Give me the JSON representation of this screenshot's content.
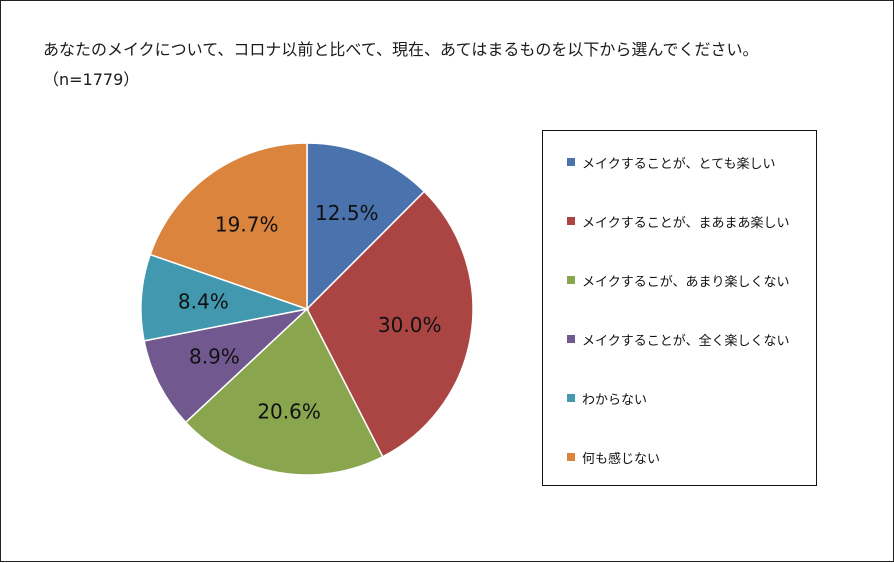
{
  "title": "あなたのメイクについて、コロナ以前と比べて、現在、あてはまるものを以下から選んでください。（n=1779）",
  "chart_data": {
    "type": "pie",
    "categories": [
      "メイクすることが、とても楽しい",
      "メイクすることが、まあまあ楽しい",
      "メイクするこが、あまり楽しくない",
      "メイクすることが、全く楽しくない",
      "わからない",
      "何も感じない"
    ],
    "values": [
      12.5,
      30.0,
      20.6,
      8.9,
      8.4,
      19.7
    ],
    "value_labels": [
      "12.5%",
      "30.0%",
      "20.6%",
      "8.9%",
      "8.4%",
      "19.7%"
    ],
    "colors": [
      "#4a72ad",
      "#aa4543",
      "#89a54e",
      "#71588f",
      "#4298af",
      "#db843d"
    ],
    "start": "12 o'clock",
    "direction": "clockwise",
    "legend_position": "right"
  }
}
